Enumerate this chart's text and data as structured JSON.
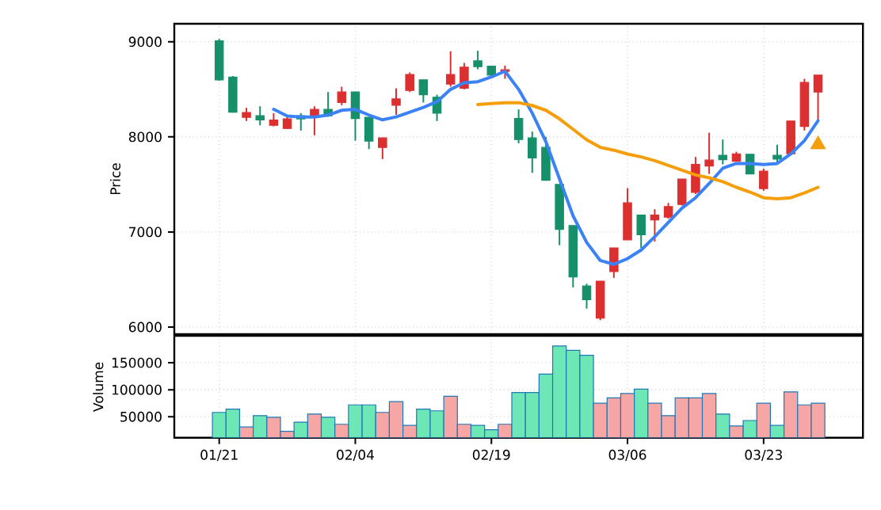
{
  "chart_data": [
    {
      "type": "candlestick",
      "ylabel": "Price",
      "ohlc": [
        [
          9010,
          9030,
          8590,
          8600
        ],
        [
          8628,
          8640,
          8255,
          8261
        ],
        [
          8206,
          8306,
          8167,
          8256
        ],
        [
          8222,
          8322,
          8122,
          8178
        ],
        [
          8122,
          8250,
          8111,
          8178
        ],
        [
          8089,
          8222,
          8083,
          8189
        ],
        [
          8222,
          8250,
          8067,
          8189
        ],
        [
          8206,
          8322,
          8017,
          8289
        ],
        [
          8289,
          8472,
          8211,
          8222
        ],
        [
          8361,
          8528,
          8333,
          8472
        ],
        [
          8472,
          8472,
          7961,
          8194
        ],
        [
          8206,
          8206,
          7872,
          7956
        ],
        [
          7889,
          7989,
          7767,
          7989
        ],
        [
          8333,
          8511,
          8233,
          8400
        ],
        [
          8489,
          8678,
          8472,
          8656
        ],
        [
          8600,
          8600,
          8361,
          8444
        ],
        [
          8417,
          8444,
          8167,
          8250
        ],
        [
          8556,
          8900,
          8528,
          8656
        ],
        [
          8511,
          8778,
          8500,
          8733
        ],
        [
          8800,
          8906,
          8711,
          8739
        ],
        [
          8744,
          8744,
          8622,
          8650
        ],
        [
          8689,
          8750,
          8611,
          8706
        ],
        [
          8194,
          8289,
          7933,
          7972
        ],
        [
          7989,
          8056,
          7622,
          7778
        ],
        [
          7889,
          8000,
          7544,
          7544
        ],
        [
          7500,
          7500,
          6861,
          7028
        ],
        [
          7067,
          7067,
          6417,
          6528
        ],
        [
          6433,
          6456,
          6194,
          6289
        ],
        [
          6094,
          6483,
          6072,
          6483
        ],
        [
          6583,
          6833,
          6517,
          6833
        ],
        [
          6917,
          7461,
          6917,
          7306
        ],
        [
          7178,
          7178,
          6833,
          6972
        ],
        [
          7128,
          7239,
          6900,
          7178
        ],
        [
          7156,
          7306,
          7139,
          7267
        ],
        [
          7289,
          7556,
          7278,
          7556
        ],
        [
          7417,
          7789,
          7400,
          7711
        ],
        [
          7694,
          8044,
          7611,
          7756
        ],
        [
          7806,
          7972,
          7711,
          7761
        ],
        [
          7744,
          7844,
          7739,
          7822
        ],
        [
          7817,
          7817,
          7611,
          7611
        ],
        [
          7456,
          7667,
          7433,
          7639
        ],
        [
          7806,
          7917,
          7722,
          7767
        ],
        [
          7822,
          8167,
          7822,
          8167
        ],
        [
          8111,
          8611,
          8067,
          8572
        ],
        [
          8472,
          8650,
          8167,
          8650
        ]
      ],
      "colors": [
        "#16906a",
        "#16906a",
        "#dc2f2f",
        "#16906a",
        "#dc2f2f",
        "#dc2f2f",
        "#16906a",
        "#dc2f2f",
        "#16906a",
        "#dc2f2f",
        "#16906a",
        "#16906a",
        "#dc2f2f",
        "#dc2f2f",
        "#dc2f2f",
        "#16906a",
        "#16906a",
        "#dc2f2f",
        "#dc2f2f",
        "#16906a",
        "#16906a",
        "#dc2f2f",
        "#16906a",
        "#16906a",
        "#16906a",
        "#16906a",
        "#16906a",
        "#16906a",
        "#dc2f2f",
        "#dc2f2f",
        "#dc2f2f",
        "#16906a",
        "#dc2f2f",
        "#dc2f2f",
        "#dc2f2f",
        "#dc2f2f",
        "#dc2f2f",
        "#16906a",
        "#dc2f2f",
        "#16906a",
        "#dc2f2f",
        "#16906a",
        "#dc2f2f",
        "#dc2f2f",
        "#dc2f2f"
      ],
      "ylim": [
        5925,
        9190
      ],
      "yticks": [
        6000,
        7000,
        8000,
        9000
      ],
      "grid": true,
      "tick_labels": "y",
      "series": [
        {
          "type": "line",
          "color": "#3b82f6",
          "values": [
            null,
            null,
            null,
            null,
            8290,
            8220,
            8210,
            8210,
            8230,
            8280,
            8290,
            8230,
            8180,
            8210,
            8260,
            8310,
            8370,
            8500,
            8570,
            8580,
            8630,
            8690,
            8500,
            8250,
            7950,
            7560,
            7170,
            6890,
            6700,
            6660,
            6720,
            6810,
            6950,
            7100,
            7250,
            7360,
            7510,
            7670,
            7720,
            7720,
            7710,
            7720,
            7820,
            7960,
            8170
          ]
        },
        {
          "type": "line",
          "color": "#f59e0b",
          "values": [
            null,
            null,
            null,
            null,
            null,
            null,
            null,
            null,
            null,
            null,
            null,
            null,
            null,
            null,
            null,
            null,
            null,
            null,
            null,
            8340,
            8350,
            8360,
            8360,
            8330,
            8280,
            8190,
            8080,
            7970,
            7890,
            7860,
            7820,
            7790,
            7750,
            7700,
            7650,
            7600,
            7570,
            7530,
            7470,
            7420,
            7360,
            7350,
            7360,
            7410,
            7470
          ]
        },
        {
          "type": "scatter",
          "color": "#f59e0b",
          "marker": "triangle",
          "values": [
            null,
            null,
            null,
            null,
            null,
            null,
            null,
            null,
            null,
            null,
            null,
            null,
            null,
            null,
            null,
            null,
            null,
            null,
            null,
            null,
            null,
            null,
            null,
            null,
            null,
            null,
            null,
            null,
            null,
            null,
            null,
            null,
            null,
            null,
            null,
            null,
            null,
            null,
            null,
            null,
            null,
            null,
            null,
            null,
            7920
          ]
        }
      ]
    },
    {
      "type": "bar",
      "ylabel": "Volume",
      "categories": [
        "01/21",
        null,
        null,
        null,
        null,
        null,
        null,
        null,
        null,
        null,
        "02/04",
        null,
        null,
        null,
        null,
        null,
        null,
        null,
        null,
        null,
        "02/19",
        null,
        null,
        null,
        null,
        null,
        null,
        null,
        null,
        null,
        "03/06",
        null,
        null,
        null,
        null,
        null,
        null,
        null,
        null,
        null,
        "03/23",
        null,
        null,
        null,
        null
      ],
      "values": [
        58000,
        64000,
        31000,
        52000,
        49000,
        23000,
        40000,
        55000,
        49000,
        36000,
        72000,
        72000,
        58000,
        78000,
        34000,
        64000,
        61000,
        88000,
        36000,
        34000,
        26000,
        36000,
        95000,
        95000,
        129000,
        181000,
        173000,
        164000,
        75000,
        85000,
        93000,
        101000,
        75000,
        52000,
        85000,
        85000,
        93000,
        55000,
        33000,
        43000,
        75000,
        34000,
        96000,
        72000,
        75000
      ],
      "colors": [
        "#6ee7b7",
        "#6ee7b7",
        "#f7a6a6",
        "#6ee7b7",
        "#f7a6a6",
        "#f7a6a6",
        "#6ee7b7",
        "#f7a6a6",
        "#6ee7b7",
        "#f7a6a6",
        "#6ee7b7",
        "#6ee7b7",
        "#f7a6a6",
        "#f7a6a6",
        "#f7a6a6",
        "#6ee7b7",
        "#6ee7b7",
        "#f7a6a6",
        "#f7a6a6",
        "#6ee7b7",
        "#6ee7b7",
        "#f7a6a6",
        "#6ee7b7",
        "#6ee7b7",
        "#6ee7b7",
        "#6ee7b7",
        "#6ee7b7",
        "#6ee7b7",
        "#f7a6a6",
        "#f7a6a6",
        "#f7a6a6",
        "#6ee7b7",
        "#f7a6a6",
        "#f7a6a6",
        "#f7a6a6",
        "#f7a6a6",
        "#f7a6a6",
        "#6ee7b7",
        "#f7a6a6",
        "#6ee7b7",
        "#f7a6a6",
        "#6ee7b7",
        "#f7a6a6",
        "#f7a6a6",
        "#f7a6a6"
      ],
      "ylim": [
        11000,
        200000
      ],
      "yticks": [
        50000,
        100000,
        150000
      ],
      "grid": true
    }
  ]
}
